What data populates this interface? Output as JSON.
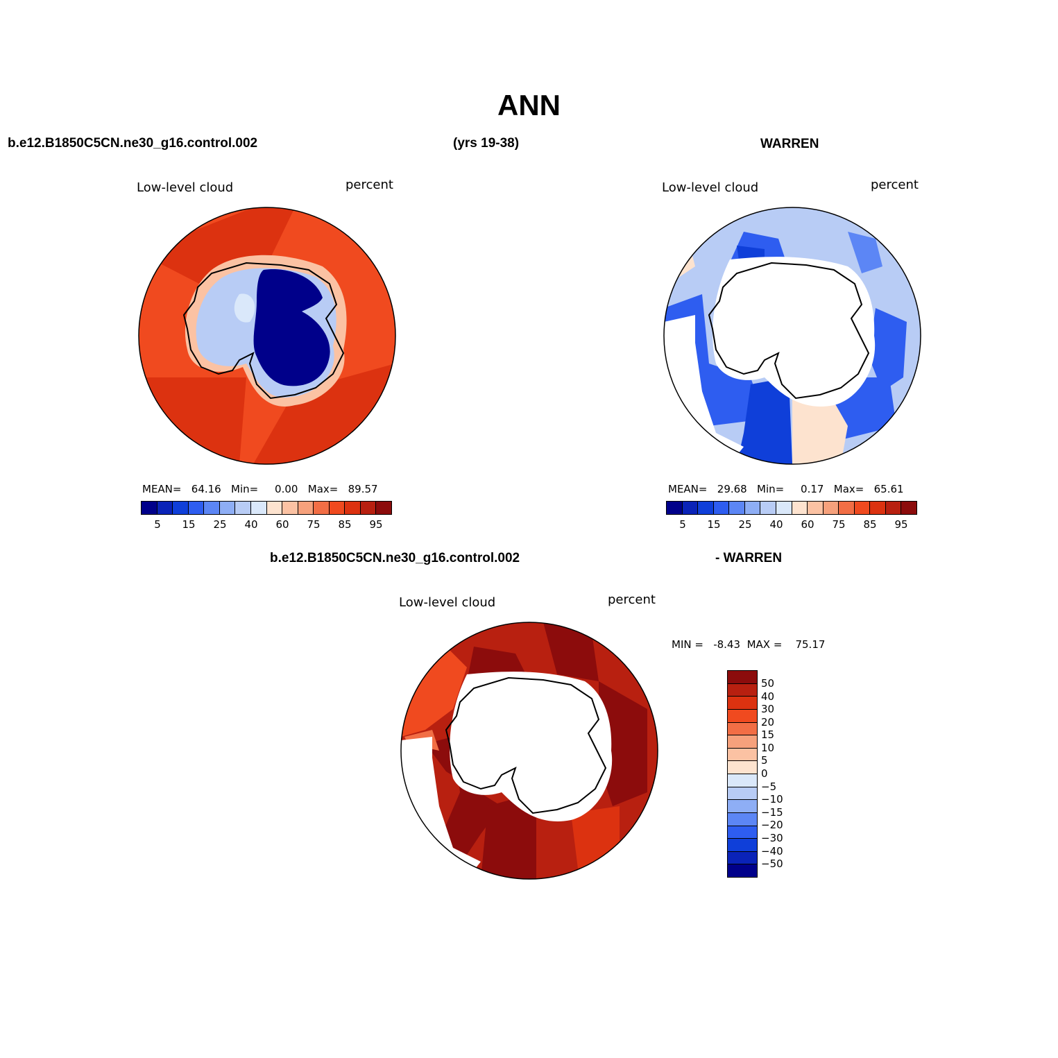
{
  "title": "ANN",
  "header": {
    "case_name": "b.e12.B1850C5CN.ne30_g16.control.002",
    "years": "(yrs 19-38)",
    "obs_name": "WARREN",
    "diff_case": "b.e12.B1850C5CN.ne30_g16.control.002",
    "diff_obs": "- WARREN"
  },
  "panels": {
    "model": {
      "variable": "Low-level cloud",
      "units": "percent",
      "stats": "MEAN=   64.16   Min=     0.00   Max=   89.57"
    },
    "obs": {
      "variable": "Low-level cloud",
      "units": "percent",
      "stats": "MEAN=   29.68   Min=     0.17   Max=   65.61"
    },
    "diff": {
      "variable": "Low-level cloud",
      "units": "percent",
      "stats": "MIN =   -8.43  MAX =    75.17"
    }
  },
  "colorbar_abs": {
    "colors": [
      "#00008a",
      "#0a23b8",
      "#0f3fd9",
      "#2e5df0",
      "#5c86f5",
      "#8eaef5",
      "#b8ccf5",
      "#dae8fa",
      "#fde3cf",
      "#fbc2a3",
      "#f6a17c",
      "#f26e45",
      "#f04a1f",
      "#dc3210",
      "#b82010",
      "#8c0c0c"
    ],
    "ticks": [
      "5",
      "15",
      "25",
      "40",
      "60",
      "75",
      "85",
      "95"
    ]
  },
  "colorbar_diff": {
    "colors": [
      "#8c0c0c",
      "#b82010",
      "#dc3210",
      "#f04a1f",
      "#f26e45",
      "#f6a17c",
      "#fbc2a3",
      "#fde3cf",
      "#dae8fa",
      "#b8ccf5",
      "#8eaef5",
      "#5c86f5",
      "#2e5df0",
      "#0f3fd9",
      "#0a23b8",
      "#00008a"
    ],
    "ticks": [
      "50",
      "40",
      "30",
      "20",
      "15",
      "10",
      "5",
      "0",
      "−5",
      "−10",
      "−15",
      "−20",
      "−30",
      "−40",
      "−50"
    ]
  }
}
